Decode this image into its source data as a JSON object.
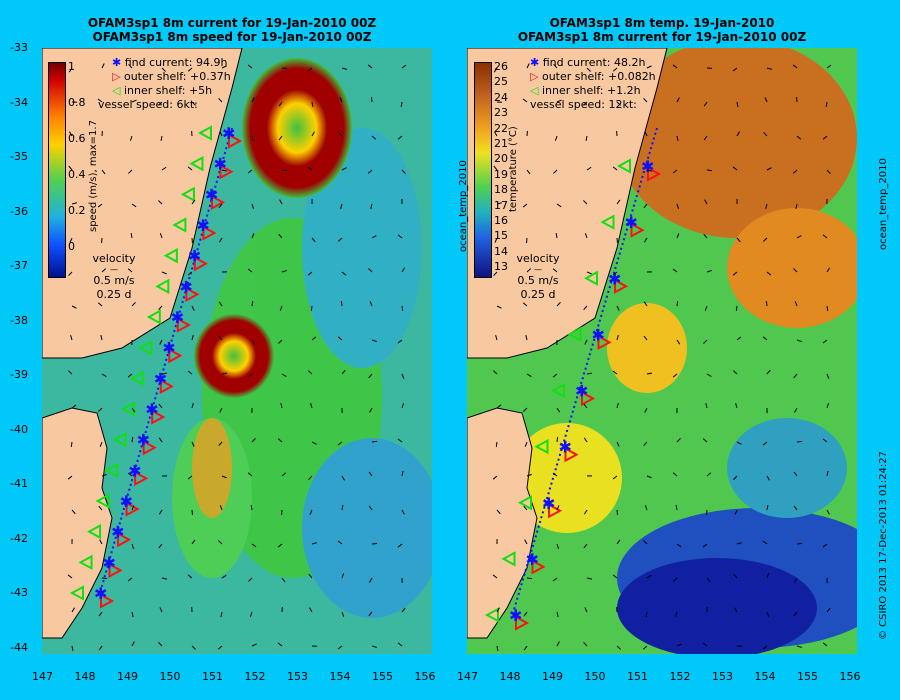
{
  "left": {
    "title1": "OFAM3sp1 8m current for 19-Jan-2010 00Z",
    "title2": "OFAM3sp1 8m speed for 19-Jan-2010 00Z",
    "legend": [
      "find current: 94.9h",
      "outer shelf: +0.37h",
      "inner shelf: +5h",
      "vessel speed: 6kt:"
    ],
    "colorbar_label": "speed (m/s), max=1.7",
    "colorbar_ticks": [
      "1",
      "0.8",
      "0.6",
      "0.4",
      "0.2",
      "0"
    ],
    "velocity_label": "velocity",
    "velocity_scale": "0.5 m/s",
    "velocity_time": "0.25 d"
  },
  "right": {
    "title1": "OFAM3sp1 8m temp. 19-Jan-2010",
    "title2": "OFAM3sp1 8m current for 19-Jan-2010 00Z",
    "legend": [
      "find current: 48.2h",
      "outer shelf: +0.082h",
      "inner shelf: +1.2h",
      "vessel speed: 12kt:"
    ],
    "colorbar_label": "temperature (°C)",
    "colorbar_ticks": [
      "26",
      "25",
      "24",
      "23",
      "22",
      "21",
      "20",
      "19",
      "18",
      "17",
      "16",
      "15",
      "14",
      "13"
    ],
    "velocity_label": "velocity",
    "velocity_scale": "0.5 m/s",
    "velocity_time": "0.25 d",
    "side_label_inner": "ocean_temp_2010",
    "side_label_outer": "ocean_temp_2010"
  },
  "credit": "© CSIRO 2013   17-Dec-2013 01:24:27",
  "lat_ticks": [
    "-33",
    "-34",
    "-35",
    "-36",
    "-37",
    "-38",
    "-39",
    "-40",
    "-41",
    "-42",
    "-43",
    "-44"
  ],
  "lon_ticks": [
    "147",
    "148",
    "149",
    "150",
    "151",
    "152",
    "153",
    "154",
    "155",
    "156"
  ],
  "colors": {
    "land": "#f8c8a0",
    "frame": "#00c8f8",
    "find": "#1010ff",
    "outer": "#ff1010",
    "inner": "#10e010"
  }
}
